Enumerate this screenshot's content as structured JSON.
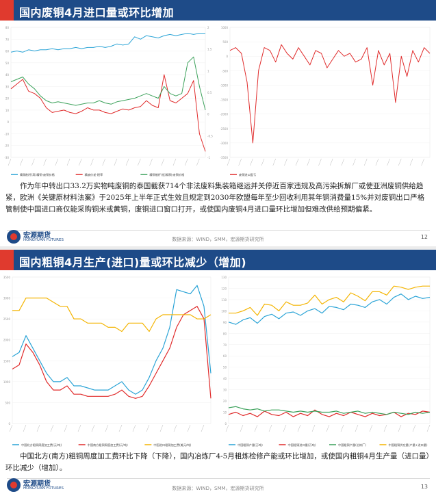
{
  "slides": [
    {
      "title": "国内废铜4月进口量或环比增加",
      "paragraph": "作为年中转出口33.2万实物吨废铜的泰国截获714个非法废料集装箱继运并关停近百家违规及高污染拆解厂或使亚洲废铜供给趋紧，欧洲《关键原材料法案》于2025年上半年正式生效且规定到2030年欧盟每年至少回收利用其年铜消费量15%并对废铜出口严格管制使中国进口商仅能采购铜米或黄铜，废铜进口窗口打开，或使国内废铜4月进口量环比增加但难改供给预期偏紧。",
      "source": "数据来源：WIND，SMM，宏源期货研究所",
      "page": "12"
    },
    {
      "title": "国内粗铜4月生产(进口)量或环比减少（增加)",
      "paragraph": "中国北方(南方)粗铜周度加工费环比下降（下降），国内冶炼厂4-5月粗炼检修产能或环比增加，或使国内粗铜4月生产量（进口量）环比减少（增加）。",
      "source": "数据来源：WIND，SMM，宏源期货研究所",
      "page": "13"
    }
  ],
  "logo": {
    "cn": "宏源期货",
    "en": "HONGYUAN FUTURES"
  },
  "colors": {
    "title_bar": "#1e4b88",
    "accent": "#e03a2e",
    "cyan": "#29a3d6",
    "green": "#3ba15a",
    "red": "#e02a2a",
    "yellow": "#f4b400"
  },
  "chart_data": [
    {
      "type": "line",
      "id": "scrap-price-spread",
      "y_ticks": [
        "80",
        "70",
        "60",
        "50",
        "40",
        "30",
        "20",
        "10",
        "0",
        "-10",
        "-20",
        "-30"
      ],
      "y_right_ticks": [
        "2",
        "1.5",
        "1",
        "0.5",
        "0",
        "-0.5",
        "-1"
      ],
      "ylim": [
        -30,
        80
      ],
      "series": [
        {
          "name": "精铜制杆(高)精铜-废铜价格",
          "color": "#29a3d6",
          "values": [
            59,
            60,
            59,
            61,
            60,
            61,
            61,
            62,
            61,
            62,
            62,
            63,
            62,
            63,
            63,
            64,
            63,
            64,
            66,
            65,
            66,
            72,
            70,
            73,
            72,
            71,
            73,
            74,
            73,
            74,
            75,
            74,
            75,
            75
          ]
        },
        {
          "name": "精废价差-税率",
          "color": "#e02a2a",
          "values": [
            28,
            32,
            36,
            26,
            24,
            20,
            12,
            8,
            9,
            10,
            8,
            7,
            9,
            12,
            10,
            10,
            8,
            7,
            9,
            11,
            10,
            12,
            13,
            18,
            14,
            12,
            40,
            18,
            16,
            20,
            24,
            35,
            -10,
            -25
          ]
        },
        {
          "name": "精铜制杆(低)精铜-废铜价格",
          "color": "#3ba15a",
          "values": [
            34,
            36,
            38,
            32,
            28,
            22,
            18,
            16,
            17,
            16,
            15,
            14,
            15,
            16,
            16,
            18,
            16,
            15,
            17,
            18,
            19,
            20,
            22,
            24,
            22,
            20,
            30,
            24,
            22,
            24,
            50,
            55,
            30,
            10
          ]
        }
      ]
    },
    {
      "type": "line",
      "id": "scrap-import-profit",
      "y_ticks": [
        "1000",
        "500",
        "0",
        "-500",
        "-1000",
        "-1500",
        "-2000",
        "-2500",
        "-3000",
        "-3500"
      ],
      "ylim": [
        -3500,
        1000
      ],
      "series": [
        {
          "name": "废铜进口盈亏",
          "color": "#e02a2a",
          "values": [
            200,
            300,
            100,
            -900,
            -3000,
            -500,
            300,
            200,
            -200,
            400,
            100,
            -100,
            300,
            0,
            -300,
            200,
            100,
            -400,
            -100,
            200,
            0,
            100,
            -200,
            -100,
            300,
            -1000,
            200,
            -300,
            100,
            -1600,
            0,
            -700,
            200,
            -200,
            300,
            100
          ]
        }
      ]
    },
    {
      "type": "line",
      "id": "blister-tc",
      "y_ticks": [
        "3500",
        "3000",
        "2500",
        "2000",
        "1500",
        "1000",
        "500",
        "0"
      ],
      "ylim": [
        0,
        3500
      ],
      "series": [
        {
          "name": "中国北方粗铜周度加工费(元/吨)",
          "color": "#29a3d6",
          "values": [
            1600,
            1700,
            2100,
            1800,
            1500,
            1200,
            1000,
            1000,
            1100,
            900,
            900,
            850,
            800,
            800,
            800,
            900,
            1000,
            800,
            700,
            800,
            1100,
            1500,
            1800,
            2300,
            3200,
            3150,
            3100,
            3300,
            2800,
            1200
          ]
        },
        {
          "name": "中国南方粗铜周度加工费(元/吨)",
          "color": "#e02a2a",
          "values": [
            1300,
            1400,
            1900,
            1700,
            1400,
            1000,
            800,
            800,
            900,
            700,
            700,
            650,
            650,
            650,
            650,
            700,
            800,
            650,
            600,
            650,
            900,
            1200,
            1500,
            1800,
            2300,
            2600,
            2700,
            2800,
            2500,
            600
          ]
        },
        {
          "name": "中国进口粗铜加工费(美元/吨)",
          "color": "#f4b400",
          "values": [
            2700,
            2700,
            3000,
            3000,
            3000,
            3000,
            2900,
            2800,
            2800,
            2500,
            2500,
            2400,
            2400,
            2400,
            2300,
            2300,
            2200,
            2400,
            2400,
            2400,
            2200,
            2500,
            2600,
            2600,
            2600,
            2600,
            2600,
            2500,
            2500,
            2600
          ]
        }
      ]
    },
    {
      "type": "line",
      "id": "blister-output-import",
      "y_ticks": [
        "130",
        "120",
        "110",
        "100",
        "90",
        "80",
        "70",
        "60",
        "50",
        "40",
        "30",
        "20",
        "10",
        "0"
      ],
      "ylim": [
        0,
        130
      ],
      "series": [
        {
          "name": "中国粗铜产量(万吨)",
          "color": "#29a3d6",
          "values": [
            90,
            88,
            92,
            94,
            89,
            95,
            97,
            93,
            98,
            99,
            96,
            100,
            102,
            98,
            104,
            103,
            101,
            106,
            105,
            103,
            108,
            110,
            106,
            112,
            115,
            110,
            113,
            111,
            112
          ]
        },
        {
          "name": "中国粗铜进口量(万吨)",
          "color": "#e02a2a",
          "values": [
            8,
            10,
            7,
            9,
            6,
            11,
            8,
            7,
            10,
            6,
            9,
            7,
            12,
            8,
            6,
            9,
            7,
            10,
            8,
            6,
            9,
            7,
            8,
            10,
            6,
            9,
            8,
            11,
            10
          ]
        },
        {
          "name": "中国粗铜产量(冶炼厂)",
          "color": "#3ba15a",
          "values": [
            14,
            15,
            13,
            12,
            13,
            11,
            12,
            12,
            11,
            10,
            11,
            10,
            11,
            10,
            10,
            11,
            9,
            10,
            11,
            9,
            10,
            9,
            8,
            10,
            9,
            8,
            10,
            9,
            10
          ]
        },
        {
          "name": "中国粗铜供应量(产量+进口量)",
          "color": "#f4b400",
          "values": [
            98,
            98,
            100,
            103,
            96,
            106,
            105,
            100,
            108,
            105,
            105,
            107,
            114,
            106,
            110,
            112,
            108,
            116,
            113,
            109,
            117,
            117,
            114,
            122,
            121,
            119,
            121,
            122,
            122
          ]
        }
      ]
    }
  ]
}
